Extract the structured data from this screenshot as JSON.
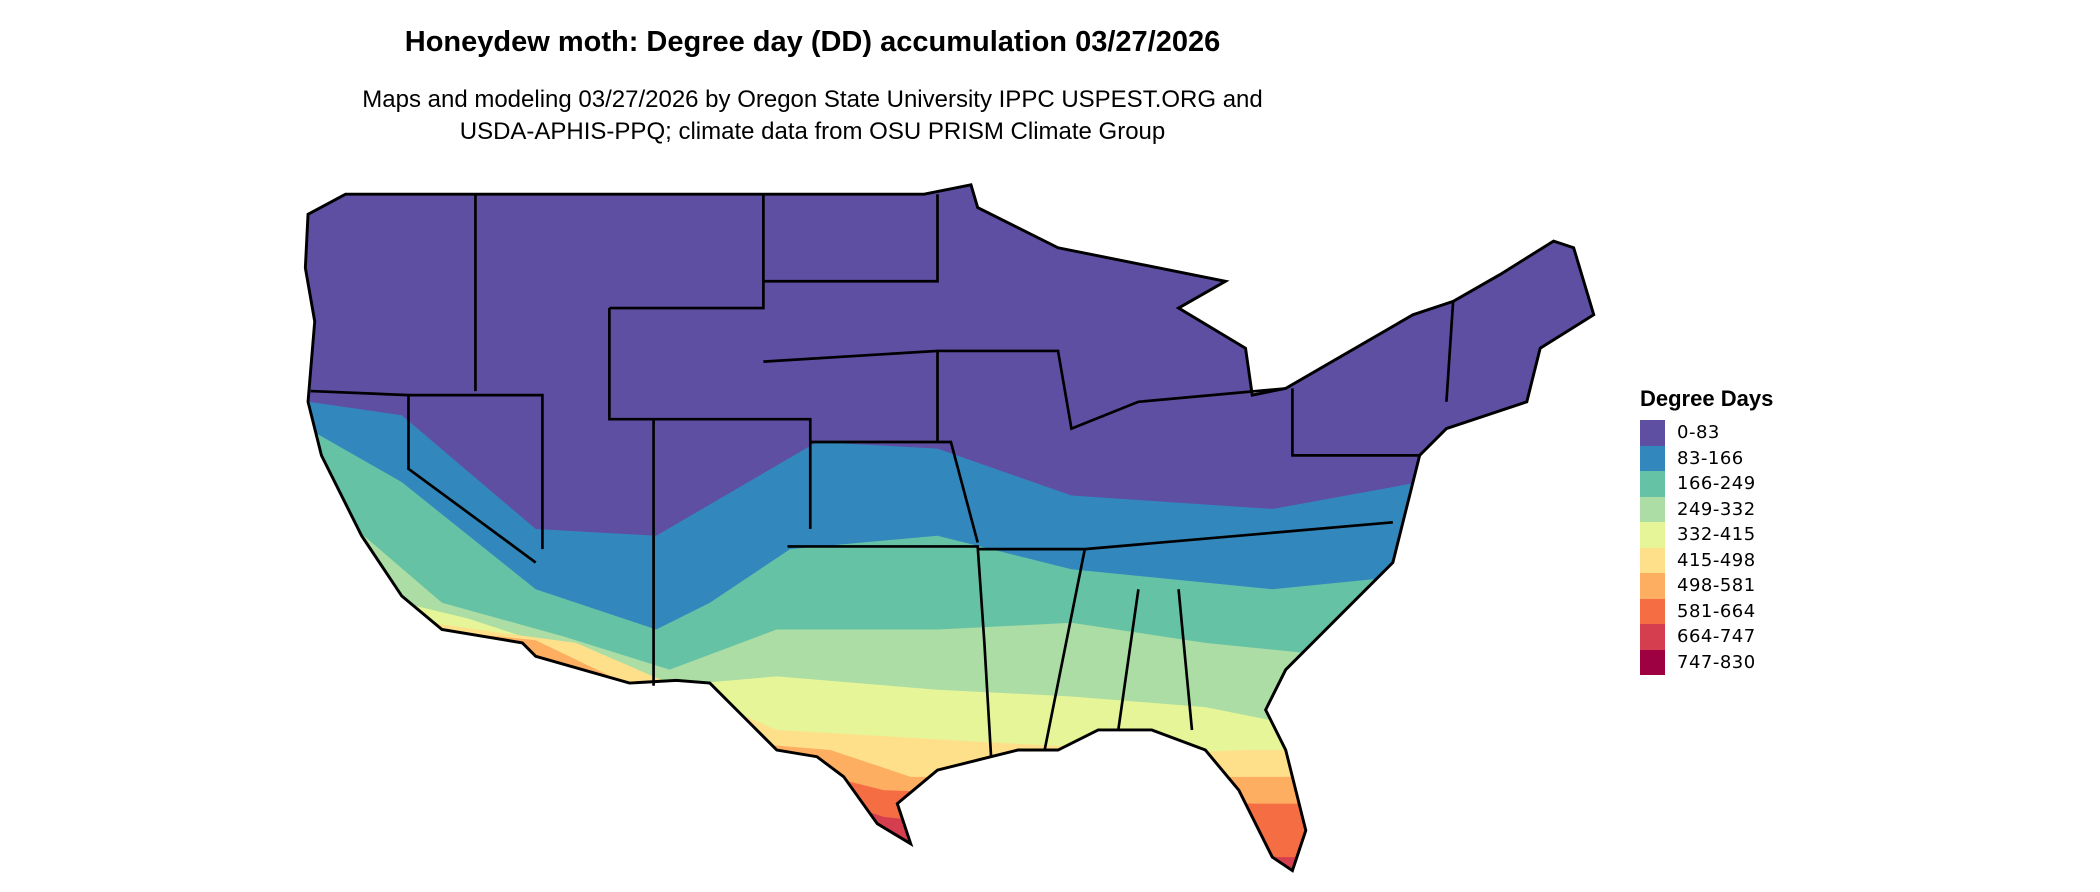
{
  "title": "Honeydew moth: Degree day (DD) accumulation 03/27/2026",
  "subtitle_line1": "Maps and modeling 03/27/2026 by Oregon State University IPPC USPEST.ORG and",
  "subtitle_line2": "USDA-APHIS-PPQ; climate data from OSU PRISM Climate Group",
  "legend": {
    "title": "Degree Days",
    "items": [
      {
        "label": "0-83",
        "color": "#5e4fa2"
      },
      {
        "label": "83-166",
        "color": "#3288bd"
      },
      {
        "label": "166-249",
        "color": "#66c2a5"
      },
      {
        "label": "249-332",
        "color": "#abdda4"
      },
      {
        "label": "332-415",
        "color": "#e6f598"
      },
      {
        "label": "415-498",
        "color": "#fee08b"
      },
      {
        "label": "498-581",
        "color": "#fdae61"
      },
      {
        "label": "581-664",
        "color": "#f46d43"
      },
      {
        "label": "664-747",
        "color": "#d53e4f"
      },
      {
        "label": "747-830",
        "color": "#9e0142"
      }
    ]
  }
}
